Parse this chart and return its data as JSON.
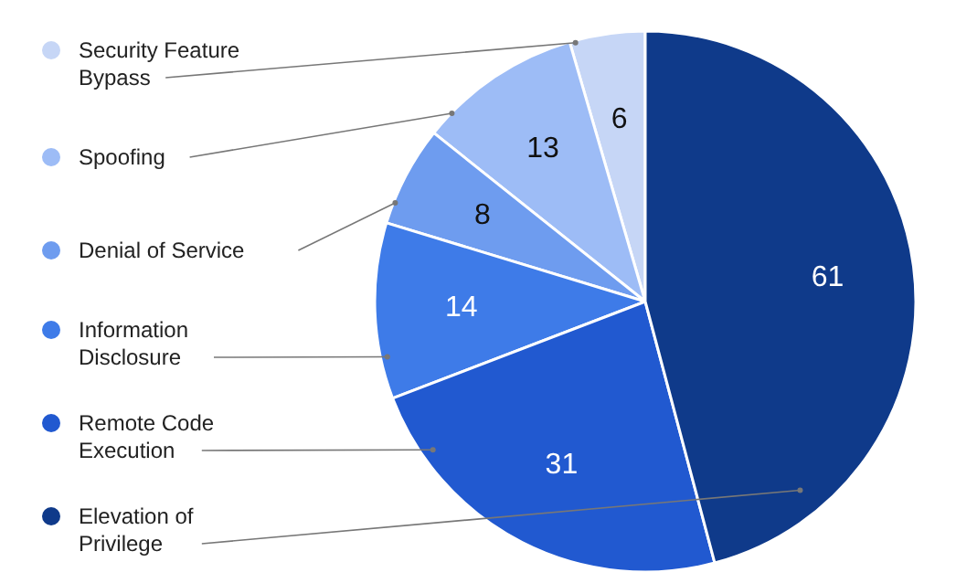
{
  "chart_data": {
    "type": "pie",
    "categories": [
      "Security Feature Bypass",
      "Spoofing",
      "Denial of Service",
      "Information Disclosure",
      "Remote Code Execution",
      "Elevation of Privilege"
    ],
    "values": [
      6,
      13,
      8,
      14,
      31,
      61
    ],
    "colors": [
      "#c6d6f6",
      "#9dbcf6",
      "#6e9cef",
      "#3e7be8",
      "#2159d0",
      "#0f3a8a"
    ],
    "data_labels": true,
    "legend": "left"
  }
}
